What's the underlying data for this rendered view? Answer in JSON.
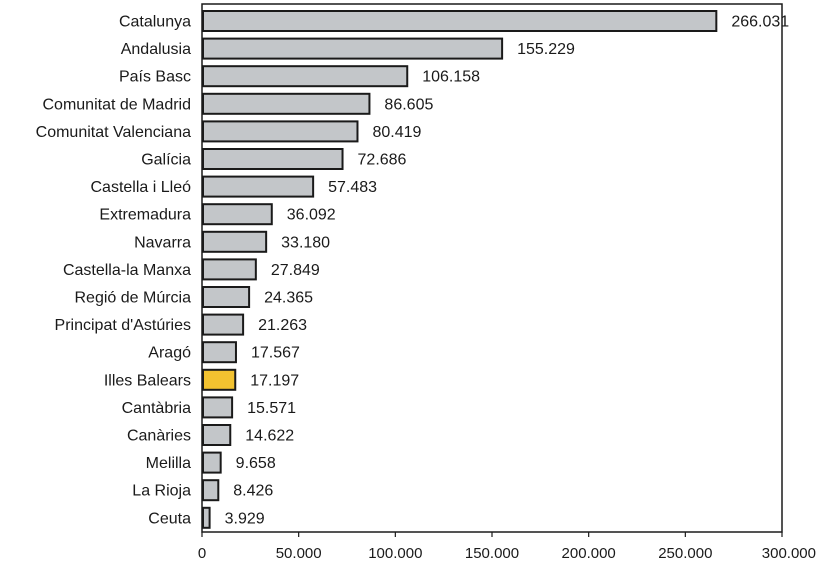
{
  "chart_data": {
    "type": "bar",
    "orientation": "horizontal",
    "categories": [
      "Catalunya",
      "Andalusia",
      "País Basc",
      "Comunitat de Madrid",
      "Comunitat Valenciana",
      "Galícia",
      "Castella i Lleó",
      "Extremadura",
      "Navarra",
      "Castella-la Manxa",
      "Regió de Múrcia",
      "Principat d'Astúries",
      "Aragó",
      "Illes Balears",
      "Cantàbria",
      "Canàries",
      "Melilla",
      "La Rioja",
      "Ceuta"
    ],
    "values": [
      266031,
      155229,
      106158,
      86605,
      80419,
      72686,
      57483,
      36092,
      33180,
      27849,
      24365,
      21263,
      17567,
      17197,
      15571,
      14622,
      9658,
      8426,
      3929
    ],
    "value_labels": [
      "266.031",
      "155.229",
      "106.158",
      "86.605",
      "80.419",
      "72.686",
      "57.483",
      "36.092",
      "33.180",
      "27.849",
      "24.365",
      "21.263",
      "17.567",
      "17.197",
      "15.571",
      "14.622",
      "9.658",
      "8.426",
      "3.929"
    ],
    "xlim": [
      0,
      300000
    ],
    "xticks": [
      0,
      50000,
      100000,
      150000,
      200000,
      250000,
      300000
    ],
    "xtick_labels": [
      "0",
      "50.000",
      "100.000",
      "150.000",
      "200.000",
      "250.000",
      "300.000"
    ],
    "grid": false,
    "title": "",
    "xlabel": "",
    "ylabel": "",
    "colors": {
      "bar": "#c3c6c9",
      "highlight": "#f2c230",
      "outline": "#1a1a1a"
    },
    "highlight_category": "Illes Balears"
  }
}
